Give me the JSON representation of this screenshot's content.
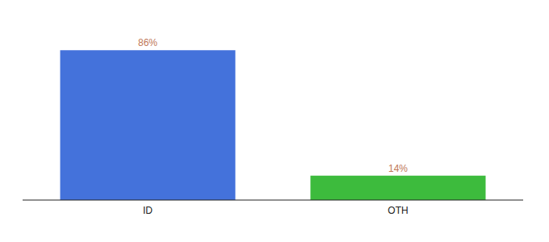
{
  "chart_data": {
    "type": "bar",
    "categories": [
      "ID",
      "OTH"
    ],
    "values": [
      86,
      14
    ],
    "colors": [
      "#4472db",
      "#3dbb3d"
    ],
    "value_labels": [
      "86%",
      "14%"
    ],
    "data_labels": true,
    "ylim": [
      0,
      100
    ],
    "tick_labels": "x"
  }
}
